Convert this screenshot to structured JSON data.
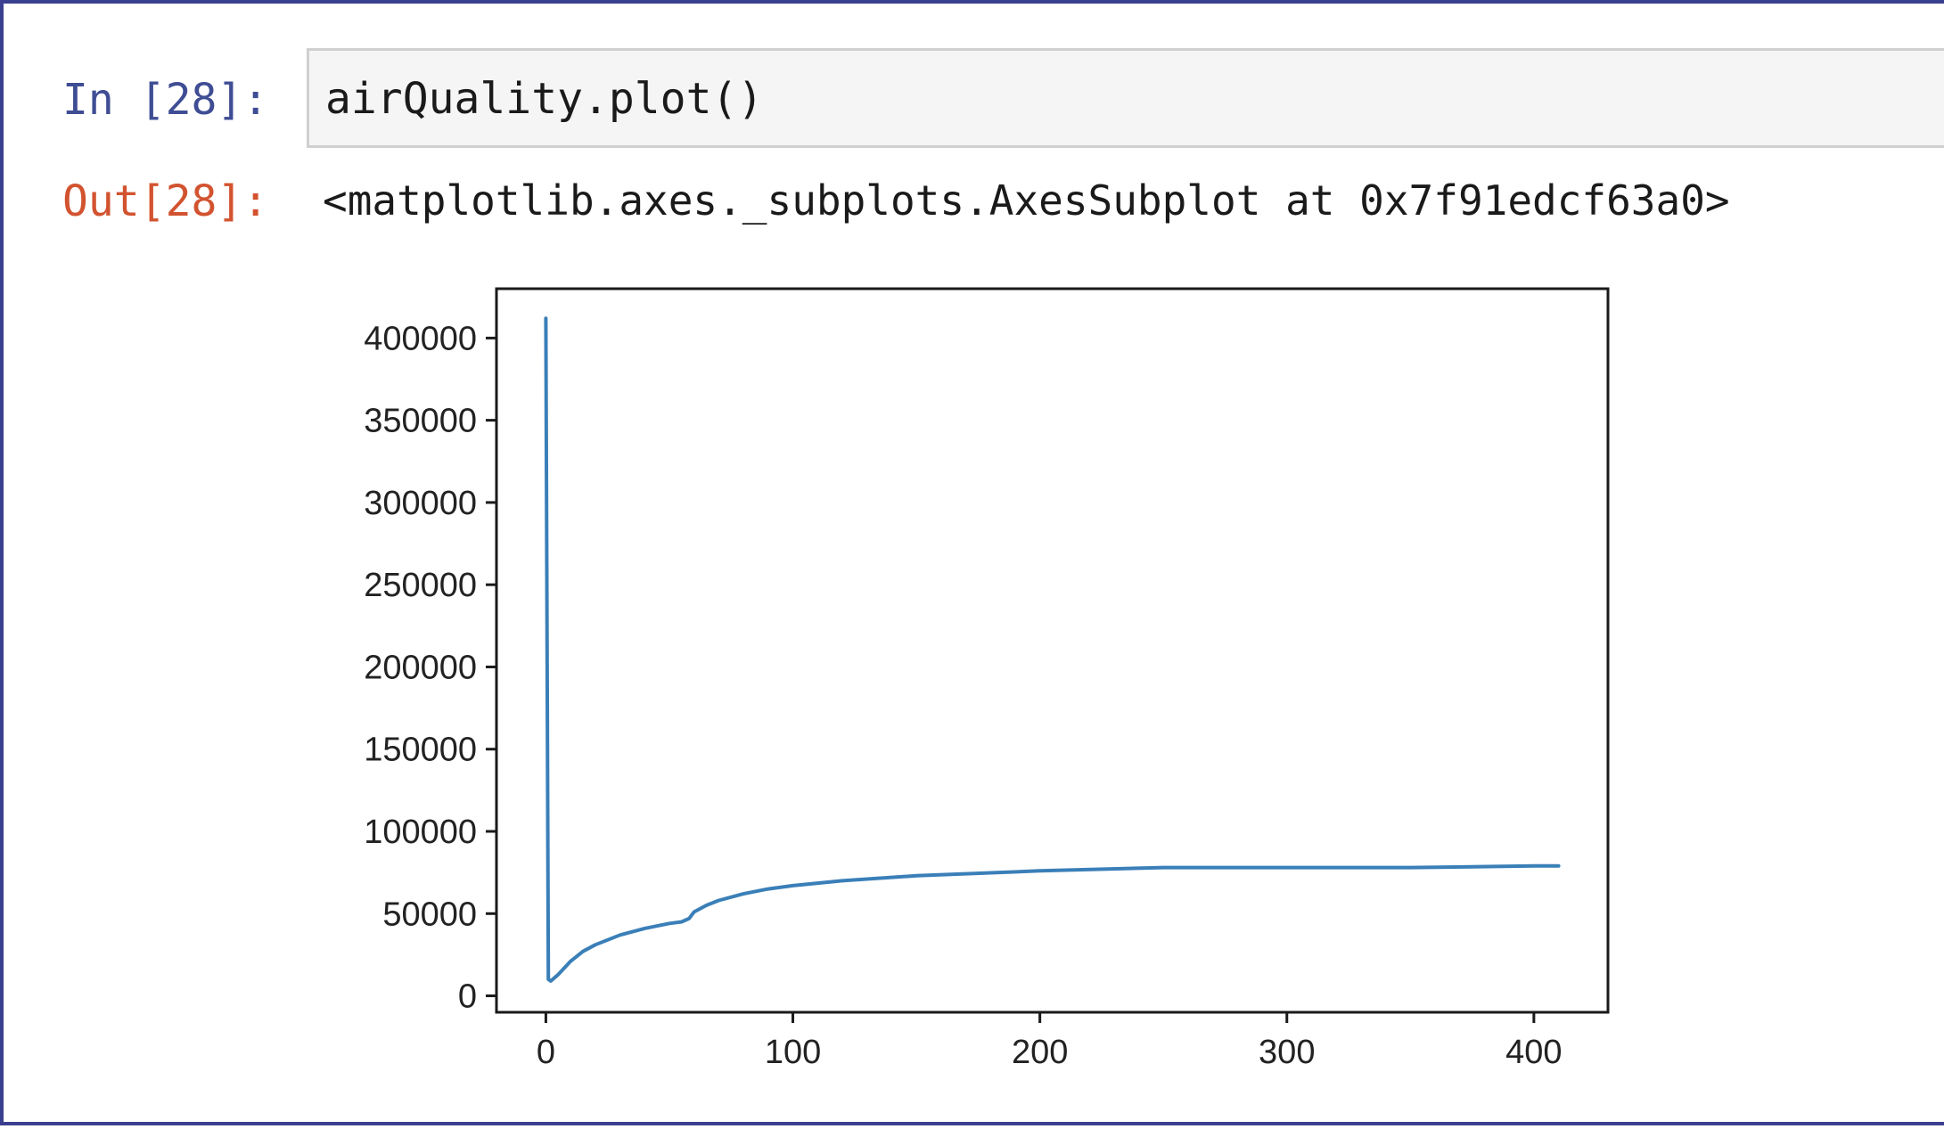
{
  "notebook": {
    "input_prompt": "In [28]:",
    "input_code": "airQuality.plot()",
    "output_prompt": "Out[28]:",
    "output_text": "<matplotlib.axes._subplots.AxesSubplot at 0x7f91edcf63a0>"
  },
  "chart_data": {
    "type": "line",
    "title": "",
    "xlabel": "",
    "ylabel": "",
    "xlim": [
      -20,
      430
    ],
    "ylim": [
      -10000,
      430000
    ],
    "x_ticks": [
      0,
      100,
      200,
      300,
      400
    ],
    "x_tick_labels": [
      "0",
      "100",
      "200",
      "300",
      "400"
    ],
    "y_ticks": [
      0,
      50000,
      100000,
      150000,
      200000,
      250000,
      300000,
      350000,
      400000
    ],
    "y_tick_labels": [
      "0",
      "50000",
      "100000",
      "150000",
      "200000",
      "250000",
      "300000",
      "350000",
      "400000"
    ],
    "grid": false,
    "line_color": "#3a7fb8",
    "series": [
      {
        "x": [
          0,
          1,
          2,
          5,
          10,
          15,
          20,
          30,
          40,
          50,
          55,
          58,
          60,
          65,
          70,
          80,
          90,
          100,
          120,
          150,
          200,
          250,
          300,
          350,
          400,
          410
        ],
        "values": [
          412000,
          10000,
          9000,
          13000,
          21000,
          27000,
          31000,
          37000,
          41000,
          44000,
          45000,
          47000,
          51000,
          55000,
          58000,
          62000,
          65000,
          67000,
          70000,
          73000,
          76000,
          78000,
          78000,
          78000,
          79000,
          79000
        ]
      }
    ]
  }
}
